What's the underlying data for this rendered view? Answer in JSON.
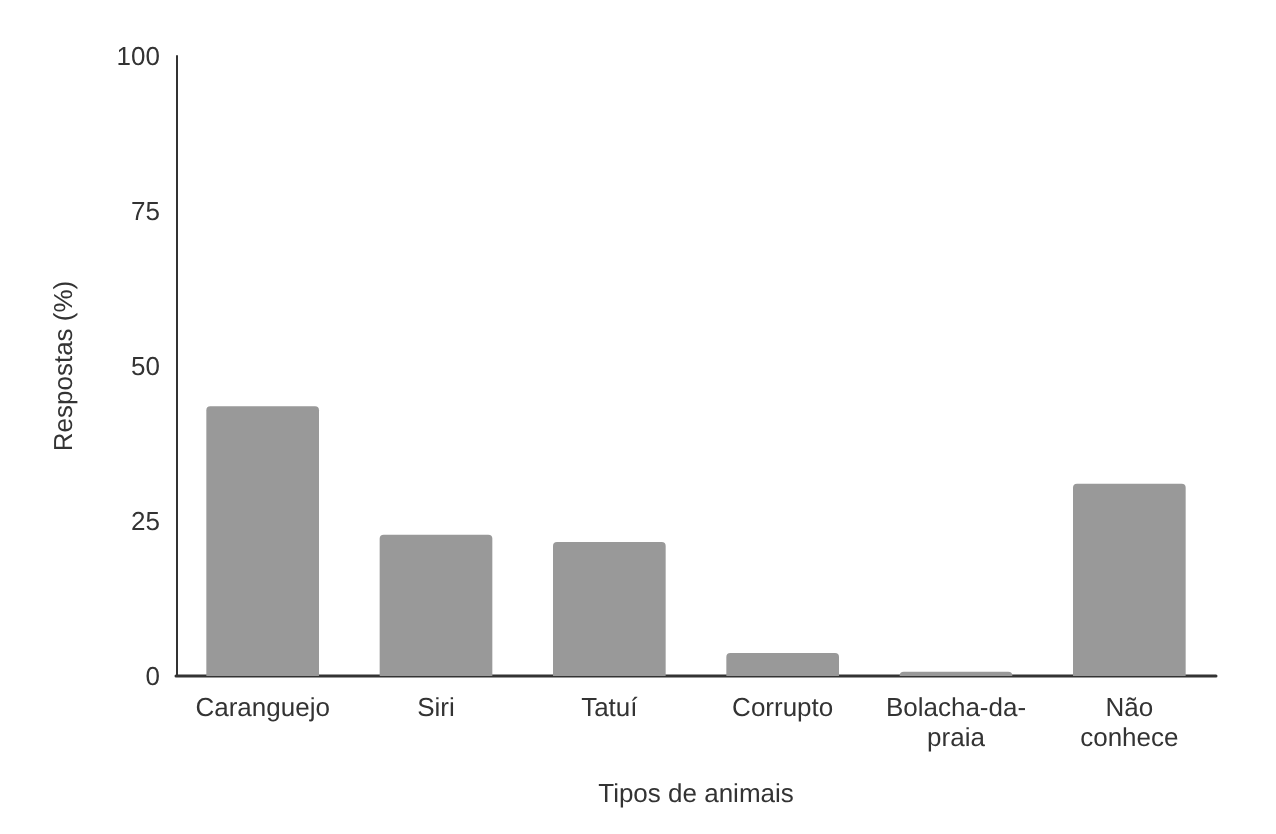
{
  "chart_data": {
    "type": "bar",
    "xlabel": "Tipos de animais",
    "ylabel": "Respostas (%)",
    "categories": [
      "Caranguejo",
      "Siri",
      "Tatuí",
      "Corrupto",
      "Bolacha-da-\npraia",
      "Não\nconhece"
    ],
    "values": [
      43.5,
      22.8,
      21.6,
      3.7,
      0.7,
      31
    ],
    "color": "#999999",
    "ylim": [
      0,
      100
    ],
    "yticks": [
      0,
      25,
      50,
      75,
      100
    ],
    "grid": false
  }
}
